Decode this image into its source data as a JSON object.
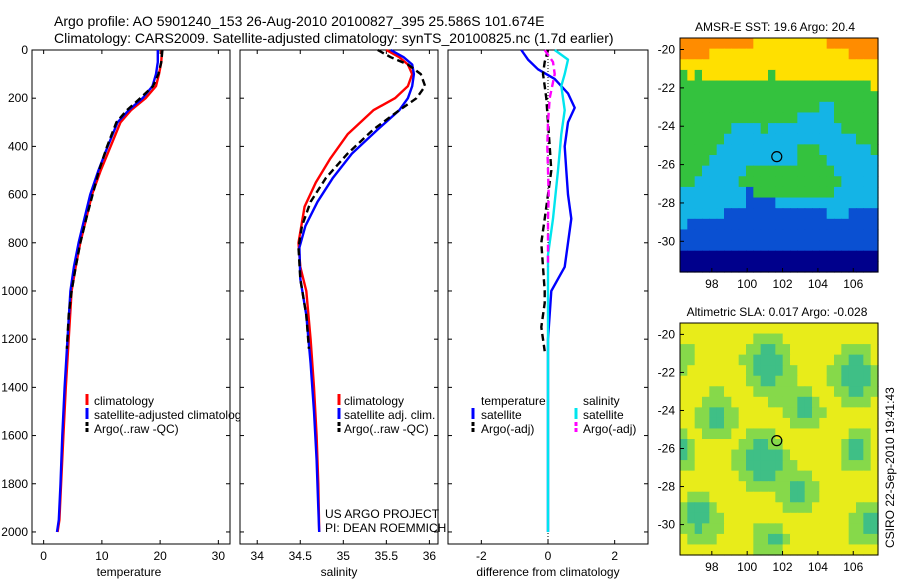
{
  "header": {
    "title_line1": "Argo profile: AO 5901240_153 26-Aug-2010 20100827_395 25.586S 101.674E",
    "title_line2": "Climatology: CARS2009. Satellite-adjusted climatology: synTS_20100825.nc (1.7d earlier)"
  },
  "credit": {
    "line1": "US ARGO PROJECT",
    "line2": "PI: DEAN ROEMMICH",
    "side": "CSIRO 22-Sep-2010 19:41:43"
  },
  "colors": {
    "climatology": "#ff0000",
    "satellite": "#0000ff",
    "argo": "#000000",
    "sal_satellite": "#00e5ee",
    "sal_argo": "#ff00ff"
  },
  "chart_data": [
    {
      "type": "line",
      "xlabel": "temperature",
      "ylabel": "",
      "xlim": [
        -2,
        32
      ],
      "ylim": [
        2050,
        0
      ],
      "xticks": [
        "0",
        "10",
        "20",
        "30"
      ],
      "yticks": [
        "0",
        "200",
        "400",
        "600",
        "800",
        "1000",
        "1200",
        "1400",
        "1600",
        "1800",
        "2000"
      ],
      "legend": [
        "climatology",
        "satellite-adjusted climatology",
        "Argo(..raw -QC)"
      ],
      "series": [
        {
          "name": "climatology",
          "color": "red",
          "x": [
            20.3,
            20.2,
            19.8,
            19.3,
            17.5,
            15.0,
            13.2,
            11.5,
            9.8,
            8.3,
            7.3,
            6.3,
            5.5,
            4.8,
            4.3,
            3.8,
            3.4,
            3.0,
            2.7,
            2.4
          ],
          "y": [
            0,
            50,
            100,
            150,
            200,
            250,
            300,
            400,
            500,
            600,
            700,
            800,
            900,
            1000,
            1200,
            1400,
            1600,
            1800,
            1950,
            2000
          ]
        },
        {
          "name": "satellite-adjusted climatology",
          "color": "blue",
          "x": [
            19.6,
            19.6,
            19.3,
            18.7,
            17.0,
            14.6,
            12.7,
            11.0,
            9.4,
            8.0,
            7.0,
            6.0,
            5.2,
            4.6,
            4.1,
            3.6,
            3.2,
            2.9,
            2.6,
            2.3
          ],
          "y": [
            0,
            50,
            100,
            150,
            200,
            250,
            300,
            400,
            500,
            600,
            700,
            800,
            900,
            1000,
            1200,
            1400,
            1600,
            1800,
            1950,
            2000
          ]
        },
        {
          "name": "Argo(..raw -QC)",
          "color": "black",
          "dash": true,
          "x": [
            20.4,
            20.2,
            19.7,
            18.8,
            16.6,
            14.3,
            12.5,
            10.9,
            9.5,
            8.4,
            7.3,
            6.3,
            5.5,
            4.8,
            4.3,
            4.0
          ],
          "y": [
            0,
            50,
            100,
            150,
            200,
            250,
            300,
            400,
            500,
            600,
            700,
            800,
            900,
            1000,
            1100,
            1240
          ]
        }
      ]
    },
    {
      "type": "line",
      "xlabel": "salinity",
      "xlim": [
        33.8,
        36.1
      ],
      "ylim": [
        2050,
        0
      ],
      "xticks": [
        "34",
        "34.5",
        "35",
        "35.5",
        "36"
      ],
      "legend": [
        "climatology",
        "satellite adj. clim.",
        "Argo(..raw -QC)"
      ],
      "series": [
        {
          "name": "climatology",
          "color": "red",
          "x": [
            35.5,
            35.65,
            35.75,
            35.8,
            35.75,
            35.6,
            35.35,
            35.05,
            34.85,
            34.68,
            34.55,
            34.48,
            34.5,
            34.57,
            34.62,
            34.66,
            34.69,
            34.71,
            34.72
          ],
          "y": [
            0,
            30,
            60,
            100,
            150,
            200,
            250,
            350,
            450,
            550,
            650,
            800,
            900,
            1000,
            1200,
            1400,
            1600,
            1800,
            2000
          ]
        },
        {
          "name": "satellite adj. clim.",
          "color": "blue",
          "x": [
            35.55,
            35.7,
            35.8,
            35.82,
            35.8,
            35.75,
            35.65,
            35.4,
            35.1,
            34.88,
            34.7,
            34.56,
            34.49,
            34.5,
            34.57,
            34.62,
            34.66,
            34.69,
            34.71,
            34.72
          ],
          "y": [
            0,
            30,
            60,
            100,
            150,
            200,
            250,
            330,
            430,
            530,
            630,
            730,
            820,
            950,
            1100,
            1300,
            1500,
            1700,
            1900,
            2000
          ]
        },
        {
          "name": "Argo(..raw -QC)",
          "color": "black",
          "dash": true,
          "x": [
            35.4,
            35.55,
            35.75,
            35.9,
            35.95,
            35.85,
            35.65,
            35.35,
            35.05,
            34.8,
            34.62,
            34.52,
            34.48,
            34.5,
            34.57,
            34.6
          ],
          "y": [
            0,
            30,
            60,
            100,
            150,
            200,
            250,
            330,
            430,
            530,
            630,
            730,
            820,
            950,
            1100,
            1240
          ]
        }
      ]
    },
    {
      "type": "line",
      "xlabel": "difference from climatology",
      "xlim": [
        -3,
        3
      ],
      "ylim": [
        2050,
        0
      ],
      "xticks": [
        "-2",
        "0",
        "2"
      ],
      "legend_groups": [
        "temperature",
        "salinity"
      ],
      "legend": [
        "satellite",
        "Argo(-adj)",
        "satellite",
        "Argo(-adj)"
      ],
      "series": [
        {
          "name": "satellite",
          "group": "temperature",
          "color": "blue",
          "x": [
            -0.8,
            -0.6,
            -0.3,
            0.2,
            0.6,
            0.8,
            0.6,
            0.5,
            0.55,
            0.6,
            0.7,
            0.6,
            0.5,
            0.3,
            0.1,
            0.0,
            0.0,
            0.0
          ],
          "y": [
            0,
            40,
            80,
            120,
            180,
            240,
            300,
            400,
            500,
            600,
            700,
            800,
            900,
            950,
            1000,
            1200,
            1600,
            2000
          ]
        },
        {
          "name": "Argo(-adj)",
          "group": "temperature",
          "color": "black",
          "dash": true,
          "x": [
            0.0,
            -0.1,
            -0.15,
            -0.1,
            -0.05,
            0.0,
            0.05,
            0.1,
            0.0,
            -0.1,
            -0.2,
            -0.15,
            -0.1,
            -0.1,
            -0.15,
            -0.2,
            -0.1
          ],
          "y": [
            0,
            50,
            100,
            150,
            200,
            300,
            400,
            500,
            600,
            700,
            800,
            900,
            1000,
            1050,
            1100,
            1150,
            1250
          ]
        },
        {
          "name": "satellite",
          "group": "salinity",
          "color": "cyan",
          "x": [
            0.2,
            0.6,
            0.5,
            0.4,
            0.5,
            0.4,
            0.3,
            0.15,
            0.0,
            0.0,
            0.0,
            0.0
          ],
          "y": [
            0,
            40,
            100,
            150,
            250,
            350,
            500,
            700,
            850,
            1000,
            1500,
            2000
          ]
        },
        {
          "name": "Argo(-adj)",
          "group": "salinity",
          "color": "magenta",
          "dash": true,
          "x": [
            -0.1,
            0.15,
            0.2,
            0.05,
            0.0,
            -0.02,
            0.0,
            0.02,
            0.0,
            0.0,
            0.0
          ],
          "y": [
            0,
            50,
            100,
            200,
            300,
            400,
            500,
            600,
            700,
            800,
            900
          ]
        }
      ]
    },
    {
      "type": "heatmap",
      "title": "AMSR-E SST: 19.6 Argo: 20.4",
      "xticks": [
        "98",
        "100",
        "102",
        "104",
        "106"
      ],
      "yticks": [
        "-20",
        "-22",
        "-24",
        "-26",
        "-28",
        "-30"
      ],
      "xlim": [
        96.2,
        107.4
      ],
      "ylim": [
        -31.6,
        -19.4
      ],
      "marker": {
        "x": 101.674,
        "y": -25.586
      },
      "colormap": "jet",
      "rows_top_to_bottom": [
        "rrrrrrrrrryyyyyyyyyyrrrrrr",
        "rrrryyyyyyyyyyyyyyyyyyyrrr",
        "yyyyyyyyyyyyyyyyyyyyyyyyyy",
        "gygyyyyyyyyygyyyyyyyyyyyyy",
        "ggggggggggggggggggggggggggy",
        "ggggggggggggggggggggggggggg",
        "gggggggggggggggggggccgggggg",
        "ggggggggggggggggcccccgggggg",
        "gggggggccccgccccccccccggggg",
        "ggggggccccccccccccccccccggg",
        "gggggcccccccccccgggcccccccg",
        "ggggccccccccccccggggccccccc",
        "gggccccccggggggggggggcccccc",
        "ggccccccggggggggggggggccccc",
        "cccccccccbgggggggggggcccccc",
        "cccccccccbbbbcccccccccccccc",
        "ccccccbbbbbbbbbbbbbbcccbbbb",
        "cbbbbbbbbbbbbbbbbbbbbbbbbbb",
        "bbbbbbbbbbbbbbbbbbbbbbbbbbb",
        "bbbbbbbbbbbbbbbbbbbbbbbbbbb",
        "nnnnnnnnnnnnnnnnnnnnnnnnnnn",
        "nnnnnnnnnnnnnnnnnnnnnnnnnnn"
      ]
    },
    {
      "type": "heatmap",
      "title": "Altimetric SLA: 0.017 Argo: -0.028",
      "xticks": [
        "98",
        "100",
        "102",
        "104",
        "106"
      ],
      "yticks": [
        "-20",
        "-22",
        "-24",
        "-26",
        "-28",
        "-30"
      ],
      "xlim": [
        96.2,
        107.4
      ],
      "ylim": [
        -31.6,
        -19.4
      ],
      "marker": {
        "x": 101.674,
        "y": -25.586
      },
      "colormap": "jet",
      "rows_top_to_bottom": [
        "yyyyyyyyyyyyyyyyyyyyyyyyyyy",
        "yyyyyyyyyyggggyyyyyyyyyyyyy",
        "ggyyyyyyyggccggyyyyyyyggggy",
        "ggyyyyyyggccccgyyyyyyggccgy",
        "gyyyyyyyygccccggyyyyggccccg",
        "yyyyyyyyyggccgggyyyyggccccg",
        "yyyyggyyyyggggggggyyyggccgg",
        "yyyggggyyyyyggggccgyyyggggy",
        "yyggccggyyyyyyggccggyyyyyyy",
        "yyggccggyyyyyyyggggyyyyyyyy",
        "gyyggggyyggggyyyyyyyyyygggy",
        "cgyyyyyyggccggyyyyyyyygccgy",
        "cgyyyyyggcccccgyyyyyyygccgy",
        "ggyyyyyggcccccggyyyyyyggggy",
        "yyyyyyyyggcccgggggyyyyyyyyy",
        "yyyyyyyyyggggggccggyyyyyyyy",
        "ygggyyyyyyyyyggccggyyyyyyyy",
        "gcccgyyyyyyyyyggggyyyyyyggg",
        "gcccggyyyyyyyyyyyyyyyyyggcc",
        "ggcgggyyyyggggyyyyyyyyyggcc",
        "yggggyyyyyggccgyyyyyyyygggg",
        "yyyyyyyyyyggggyyyyyyyyyyyyy"
      ]
    }
  ]
}
